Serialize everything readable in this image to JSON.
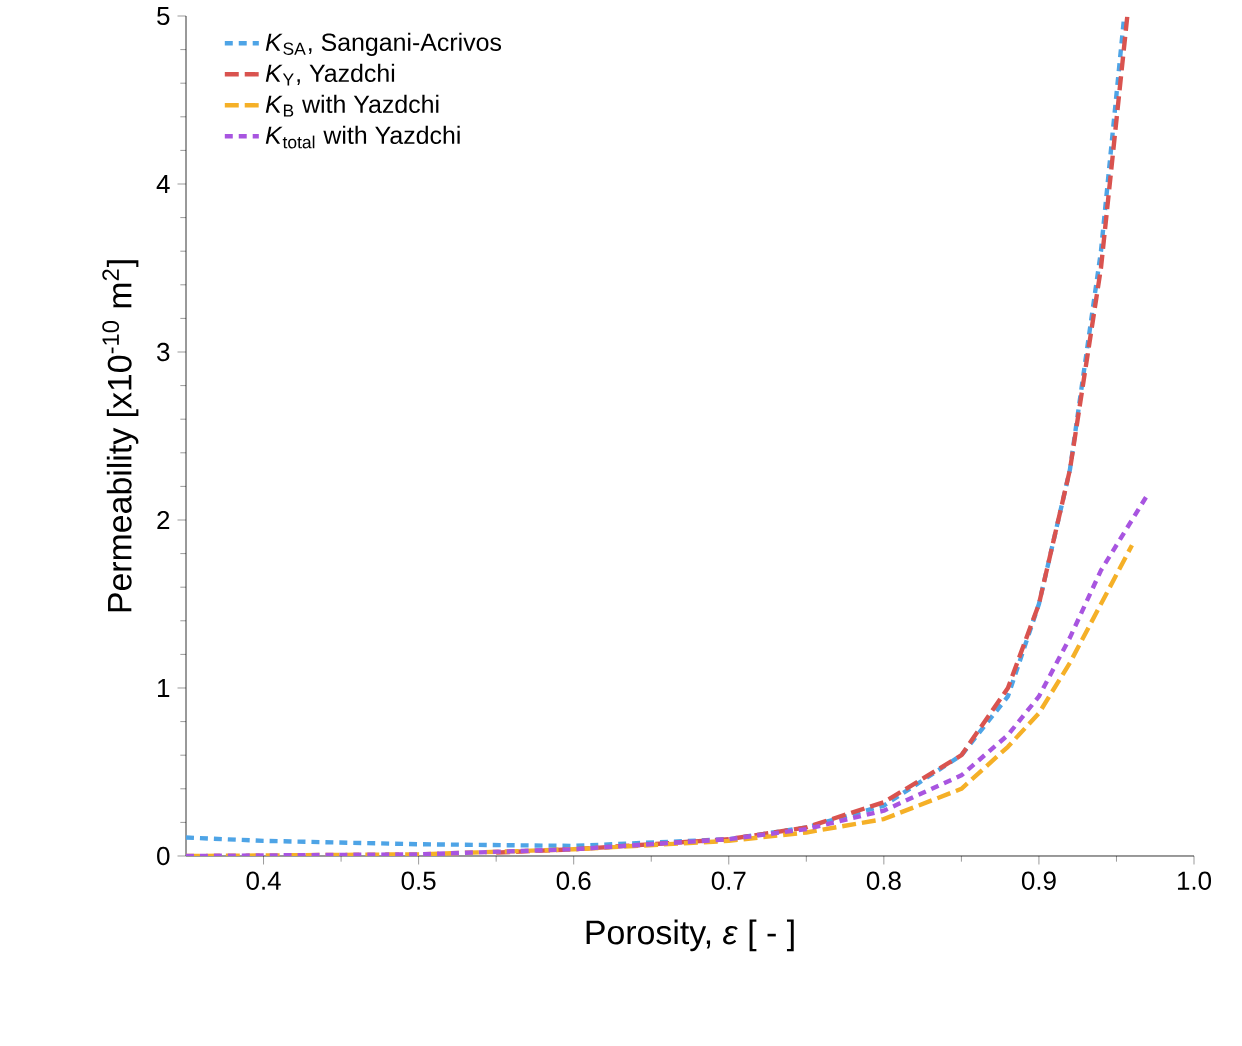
{
  "chart_data": {
    "type": "line",
    "xlabel": "Porosity, *ε* [ - ]",
    "ylabel": "Permeability [x10$^{-10}$ m$^{2}$]",
    "xlim": [
      0.35,
      1.0
    ],
    "xticks": [
      0.4,
      0.5,
      0.6,
      0.7,
      0.8,
      0.9,
      {
        "value": 1.0,
        "label": "1.0"
      }
    ],
    "ylim": [
      0,
      5
    ],
    "yticks": [
      0,
      1,
      2,
      3,
      4,
      5
    ],
    "grid": false,
    "legend": "top left",
    "marker": "none",
    "series": [
      {
        "name": "*K*$_{SA}$, Sangani-Acrivos",
        "color": "#4ea4e6",
        "line_style": "dotted",
        "x": [
          0.35,
          0.4,
          0.5,
          0.6,
          0.7,
          0.75,
          0.8,
          0.85,
          0.88,
          0.9,
          0.92,
          0.94,
          0.955
        ],
        "values": [
          0.11,
          0.09,
          0.07,
          0.06,
          0.1,
          0.17,
          0.3,
          0.6,
          0.95,
          1.5,
          2.3,
          3.6,
          5.0
        ]
      },
      {
        "name": "*K*$_{Y}$, Yazdchi",
        "color": "#d9534f",
        "line_style": "dashed",
        "x": [
          0.55,
          0.6,
          0.7,
          0.75,
          0.8,
          0.85,
          0.88,
          0.9,
          0.92,
          0.94,
          0.957
        ],
        "values": [
          0.02,
          0.04,
          0.1,
          0.17,
          0.32,
          0.6,
          1.0,
          1.5,
          2.3,
          3.5,
          5.0
        ]
      },
      {
        "name": "*K*$_{B}$ with Yazdchi",
        "color": "#f5b027",
        "line_style": "dashed",
        "x": [
          0.35,
          0.5,
          0.6,
          0.7,
          0.75,
          0.8,
          0.85,
          0.88,
          0.9,
          0.92,
          0.94,
          0.96
        ],
        "values": [
          0.0,
          0.01,
          0.04,
          0.09,
          0.14,
          0.22,
          0.4,
          0.65,
          0.85,
          1.15,
          1.5,
          1.85
        ]
      },
      {
        "name": "*K*$_{total}$ with Yazdchi",
        "color": "#a855e0",
        "line_style": "dotted",
        "x": [
          0.35,
          0.5,
          0.6,
          0.7,
          0.75,
          0.8,
          0.85,
          0.88,
          0.9,
          0.92,
          0.94,
          0.97
        ],
        "values": [
          0.0,
          0.01,
          0.04,
          0.1,
          0.16,
          0.27,
          0.48,
          0.72,
          0.95,
          1.3,
          1.7,
          2.15
        ]
      }
    ]
  }
}
